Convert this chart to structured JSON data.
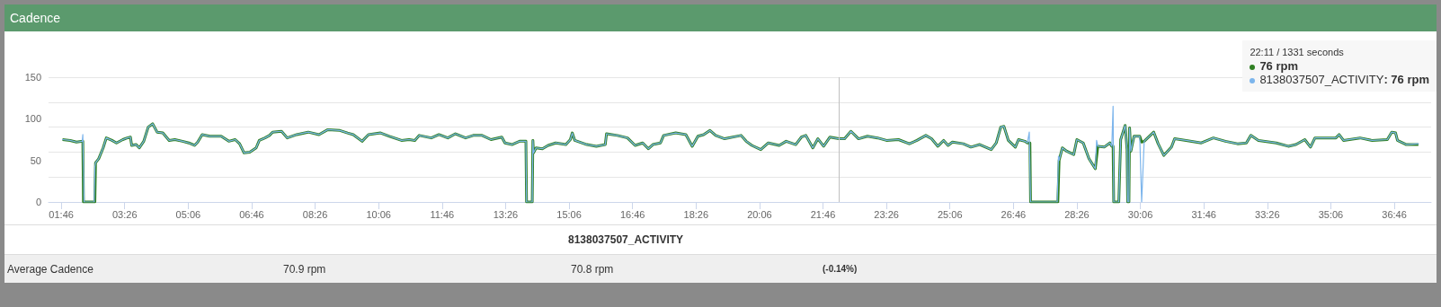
{
  "chart_data": {
    "type": "line",
    "title": "Cadence",
    "legend": "top right",
    "marker": "none",
    "line_style": "solid",
    "grid": "y",
    "ylim": [
      0,
      150
    ],
    "yticks": [
      0,
      50,
      100,
      150
    ],
    "xlim": [
      86,
      2264
    ],
    "xticks": [
      {
        "value": 106,
        "label": "01:46"
      },
      {
        "value": 206,
        "label": "03:26"
      },
      {
        "value": 306,
        "label": "05:06"
      },
      {
        "value": 406,
        "label": "06:46"
      },
      {
        "value": 506,
        "label": "08:26"
      },
      {
        "value": 606,
        "label": "10:06"
      },
      {
        "value": 706,
        "label": "11:46"
      },
      {
        "value": 806,
        "label": "13:26"
      },
      {
        "value": 906,
        "label": "15:06"
      },
      {
        "value": 1006,
        "label": "16:46"
      },
      {
        "value": 1106,
        "label": "18:26"
      },
      {
        "value": 1206,
        "label": "20:06"
      },
      {
        "value": 1306,
        "label": "21:46"
      },
      {
        "value": 1406,
        "label": "23:26"
      },
      {
        "value": 1506,
        "label": "25:06"
      },
      {
        "value": 1606,
        "label": "26:46"
      },
      {
        "value": 1706,
        "label": "28:26"
      },
      {
        "value": 1806,
        "label": "30:06"
      },
      {
        "value": 1906,
        "label": "31:46"
      },
      {
        "value": 2006,
        "label": "33:26"
      },
      {
        "value": 2106,
        "label": "35:06"
      },
      {
        "value": 2206,
        "label": "36:46"
      }
    ],
    "ref_lines": [
      {
        "axis": "x",
        "value": 1331,
        "color": "#c0c0c0"
      }
    ],
    "annotations": [
      "22:11 / 1331 seconds",
      "76 rpm",
      ": 76 rpm",
      "8138037507_ACTIVITY",
      "Average Cadence",
      "70.9 rpm",
      "70.8 rpm",
      "(-0.14%)"
    ],
    "series": [
      {
        "color": "#2f7f22",
        "x": [
          108,
          120,
          130,
          140,
          141,
          159,
          160,
          165,
          172,
          177,
          186,
          193,
          203,
          210,
          215,
          217,
          224,
          229,
          236,
          243,
          250,
          257,
          266,
          276,
          285,
          297,
          307,
          316,
          321,
          328,
          340,
          358,
          370,
          380,
          387,
          394,
          403,
          413,
          418,
          427,
          434,
          439,
          453,
          462,
          477,
          495,
          512,
          526,
          545,
          557,
          566,
          580,
          590,
          609,
          623,
          642,
          654,
          663,
          670,
          689,
          701,
          715,
          727,
          743,
          755,
          769,
          783,
          800,
          805,
          816,
          828,
          838,
          839,
          848,
          849,
          850,
          854,
          864,
          873,
          885,
          901,
          908,
          911,
          915,
          934,
          949,
          963,
          965,
          982,
          998,
          1010,
          1022,
          1031,
          1038,
          1050,
          1055,
          1074,
          1090,
          1100,
          1109,
          1118,
          1128,
          1137,
          1151,
          1177,
          1185,
          1194,
          1208,
          1220,
          1237,
          1248,
          1263,
          1272,
          1279,
          1290,
          1298,
          1307,
          1317,
          1331,
          1340,
          1350,
          1362,
          1376,
          1392,
          1406,
          1425,
          1442,
          1454,
          1468,
          1477,
          1487,
          1496,
          1503,
          1510,
          1527,
          1539,
          1553,
          1571,
          1579,
          1586,
          1591,
          1598,
          1609,
          1614,
          1624,
          1628,
          1632,
          1633,
          1676,
          1678,
          1683,
          1690,
          1701,
          1706,
          1716,
          1725,
          1735,
          1739,
          1749,
          1758,
          1761,
          1763,
          1764,
          1772,
          1775,
          1782,
          1785,
          1786,
          1788,
          1789,
          1791,
          1796,
          1805,
          1808,
          1812,
          1827,
          1834,
          1843,
          1855,
          1860,
          1878,
          1902,
          1921,
          1940,
          1959,
          1973,
          1980,
          1992,
          2020,
          2039,
          2051,
          2065,
          2074,
          2081,
          2114,
          2119,
          2126,
          2152,
          2171,
          2195,
          2202,
          2208,
          2211,
          2225,
          2244
        ],
        "values": [
          75,
          74,
          72,
          73,
          0,
          0,
          47,
          52,
          65,
          77,
          74,
          71,
          75,
          77,
          78,
          68,
          69,
          65,
          73,
          90,
          94,
          84,
          83,
          74,
          75,
          73,
          71,
          68,
          72,
          81,
          79,
          79,
          73,
          75,
          70,
          59,
          60,
          65,
          74,
          77,
          80,
          84,
          85,
          77,
          81,
          84,
          81,
          87,
          86,
          83,
          81,
          73,
          81,
          83,
          79,
          74,
          75,
          74,
          80,
          77,
          81,
          77,
          82,
          77,
          80,
          80,
          75,
          78,
          71,
          69,
          73,
          73,
          0,
          0,
          74,
          59,
          65,
          64,
          68,
          71,
          69,
          75,
          83,
          74,
          69,
          67,
          69,
          82,
          80,
          77,
          68,
          71,
          64,
          69,
          71,
          80,
          83,
          81,
          67,
          79,
          81,
          86,
          80,
          76,
          80,
          73,
          68,
          63,
          71,
          68,
          73,
          69,
          78,
          80,
          65,
          76,
          67,
          78,
          76,
          76,
          85,
          76,
          79,
          77,
          74,
          75,
          70,
          74,
          80,
          76,
          67,
          74,
          68,
          72,
          70,
          66,
          69,
          63,
          71,
          90,
          91,
          74,
          66,
          75,
          73,
          71,
          71,
          0,
          0,
          50,
          65,
          61,
          57,
          75,
          71,
          52,
          40,
          67,
          66,
          71,
          67,
          67,
          0,
          0,
          75,
          92,
          63,
          0,
          0,
          89,
          61,
          79,
          79,
          72,
          73,
          84,
          70,
          56,
          66,
          76,
          74,
          71,
          77,
          73,
          70,
          71,
          80,
          74,
          71,
          67,
          69,
          75,
          66,
          77,
          77,
          81,
          74,
          77,
          74,
          75,
          84,
          83,
          74,
          69,
          69
        ]
      },
      {
        "name": "8138037507_ACTIVITY",
        "color": "#7cb5ec",
        "x": [
          108,
          120,
          130,
          139,
          140,
          141,
          142,
          158,
          159,
          160,
          165,
          172,
          177,
          186,
          193,
          203,
          210,
          215,
          217,
          224,
          229,
          236,
          243,
          250,
          257,
          266,
          276,
          285,
          297,
          307,
          316,
          321,
          328,
          340,
          358,
          370,
          380,
          387,
          394,
          403,
          413,
          418,
          427,
          434,
          439,
          453,
          462,
          477,
          495,
          512,
          526,
          545,
          557,
          566,
          580,
          590,
          609,
          623,
          642,
          654,
          663,
          670,
          689,
          701,
          715,
          727,
          743,
          755,
          769,
          783,
          800,
          805,
          816,
          828,
          838,
          839,
          848,
          849,
          850,
          854,
          864,
          873,
          885,
          901,
          908,
          911,
          915,
          934,
          949,
          963,
          965,
          982,
          998,
          1010,
          1022,
          1031,
          1038,
          1050,
          1055,
          1074,
          1090,
          1100,
          1109,
          1118,
          1128,
          1137,
          1151,
          1177,
          1185,
          1194,
          1208,
          1220,
          1237,
          1248,
          1263,
          1272,
          1279,
          1290,
          1298,
          1307,
          1317,
          1331,
          1340,
          1350,
          1362,
          1376,
          1392,
          1406,
          1425,
          1442,
          1454,
          1468,
          1477,
          1487,
          1496,
          1503,
          1510,
          1527,
          1539,
          1553,
          1571,
          1579,
          1586,
          1591,
          1598,
          1609,
          1614,
          1624,
          1628,
          1631,
          1632,
          1633,
          1675,
          1677,
          1678,
          1683,
          1690,
          1701,
          1706,
          1716,
          1725,
          1735,
          1737,
          1739,
          1749,
          1758,
          1761,
          1763,
          1764,
          1772,
          1775,
          1782,
          1785,
          1786,
          1788,
          1789,
          1791,
          1796,
          1805,
          1808,
          1812,
          1827,
          1834,
          1843,
          1855,
          1860,
          1878,
          1902,
          1921,
          1940,
          1959,
          1973,
          1980,
          1992,
          2020,
          2039,
          2051,
          2065,
          2074,
          2081,
          2114,
          2119,
          2126,
          2152,
          2171,
          2195,
          2202,
          2208,
          2211,
          2225,
          2244
        ],
        "values": [
          75,
          74,
          72,
          73,
          81,
          81,
          0,
          0,
          42,
          47,
          52,
          65,
          77,
          74,
          71,
          75,
          77,
          78,
          68,
          69,
          65,
          73,
          90,
          94,
          84,
          83,
          74,
          75,
          73,
          71,
          68,
          72,
          81,
          79,
          79,
          73,
          75,
          70,
          59,
          60,
          65,
          74,
          77,
          80,
          84,
          85,
          77,
          81,
          84,
          81,
          87,
          86,
          83,
          81,
          73,
          81,
          83,
          79,
          74,
          75,
          74,
          80,
          77,
          81,
          77,
          82,
          77,
          80,
          80,
          75,
          78,
          71,
          69,
          73,
          73,
          0,
          0,
          74,
          59,
          65,
          64,
          68,
          71,
          69,
          75,
          83,
          74,
          69,
          67,
          69,
          82,
          80,
          77,
          68,
          71,
          64,
          69,
          71,
          80,
          83,
          81,
          67,
          79,
          81,
          86,
          80,
          76,
          80,
          73,
          68,
          63,
          71,
          68,
          73,
          69,
          78,
          80,
          65,
          76,
          67,
          78,
          76,
          76,
          85,
          76,
          79,
          77,
          74,
          75,
          70,
          74,
          80,
          76,
          67,
          74,
          68,
          72,
          70,
          66,
          69,
          63,
          71,
          90,
          91,
          74,
          66,
          75,
          73,
          71,
          84,
          84,
          0,
          0,
          55,
          50,
          65,
          61,
          57,
          75,
          71,
          52,
          40,
          74,
          67,
          66,
          71,
          67,
          115,
          0,
          0,
          75,
          92,
          63,
          0,
          0,
          89,
          61,
          79,
          79,
          0,
          73,
          84,
          70,
          56,
          66,
          76,
          74,
          71,
          77,
          73,
          70,
          71,
          80,
          74,
          71,
          67,
          69,
          75,
          66,
          77,
          77,
          81,
          74,
          77,
          74,
          75,
          84,
          83,
          74,
          69,
          70
        ]
      }
    ]
  }
}
